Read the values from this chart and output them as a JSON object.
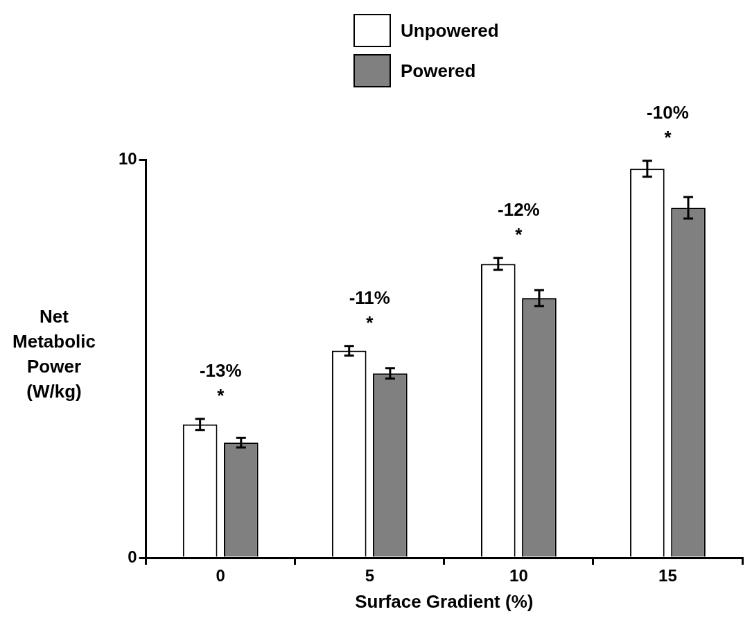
{
  "chart_data": {
    "type": "bar",
    "xlabel": "Surface Gradient (%)",
    "ylabel": "Net Metabolic Power (W/kg)",
    "categories": [
      "0",
      "5",
      "10",
      "15"
    ],
    "series": [
      {
        "name": "Unpowered",
        "color": "#ffffff",
        "values": [
          3.35,
          5.2,
          7.38,
          9.77
        ],
        "errors": [
          0.14,
          0.12,
          0.15,
          0.2
        ]
      },
      {
        "name": "Powered",
        "color": "#808080",
        "values": [
          2.89,
          4.63,
          6.52,
          8.79
        ],
        "errors": [
          0.12,
          0.13,
          0.2,
          0.27
        ]
      }
    ],
    "ylim": [
      0,
      10
    ],
    "yticks": [
      0,
      10
    ],
    "grid": false,
    "legend": "top",
    "annotations": [
      "-13%",
      "*",
      "-11%",
      "*",
      "-12%",
      "*",
      "-10%",
      "*"
    ]
  }
}
